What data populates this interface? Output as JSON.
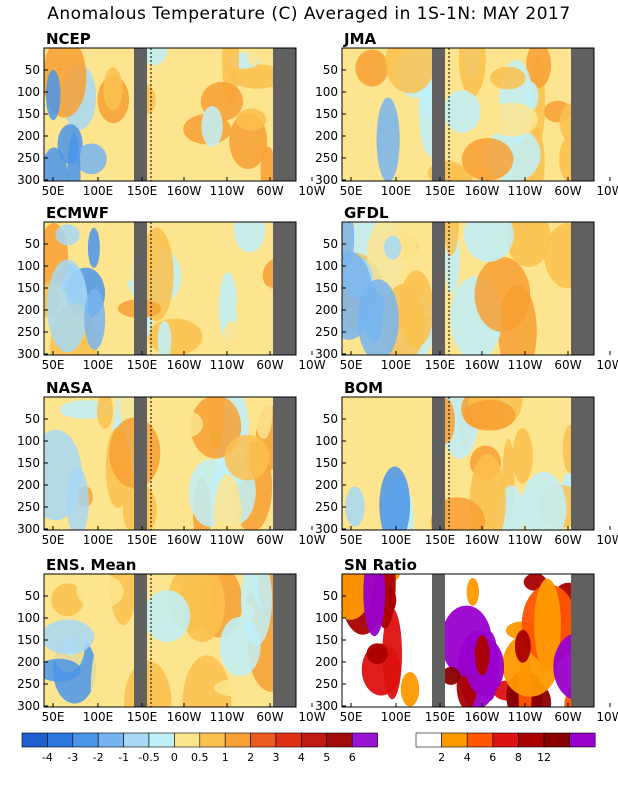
{
  "title": "Anomalous Temperature (C) Averaged in 1S-1N: MAY 2017",
  "chart_data": {
    "type": "heatmap",
    "x_ticks": [
      "50E",
      "100E",
      "150E",
      "160W",
      "110W",
      "60W",
      "10W"
    ],
    "y_ticks": [
      "50",
      "100",
      "150",
      "200",
      "250",
      "300"
    ],
    "ylim": [
      300,
      0
    ],
    "date_line": "180",
    "missing_band_color": "#606060",
    "panels": [
      {
        "name": "NCEP"
      },
      {
        "name": "JMA"
      },
      {
        "name": "ECMWF"
      },
      {
        "name": "GFDL"
      },
      {
        "name": "NASA"
      },
      {
        "name": "BOM"
      },
      {
        "name": "ENS. Mean"
      },
      {
        "name": "SN Ratio"
      }
    ],
    "anomaly_colorbar": {
      "labels": [
        "-4",
        "-3",
        "-2",
        "-1",
        "-0.5",
        "0",
        "0.5",
        "1",
        "2",
        "3",
        "4",
        "5",
        "6"
      ],
      "colors": [
        "#1e5fcd",
        "#2c78e0",
        "#4a95ea",
        "#78b4f0",
        "#a7d8f5",
        "#bff0fa",
        "#fde58f",
        "#fcc14e",
        "#f7a033",
        "#ec5b21",
        "#dd3014",
        "#c01912",
        "#a00c0c",
        "#9b13d4"
      ]
    },
    "sn_colorbar": {
      "labels": [
        "2",
        "4",
        "6",
        "8",
        "12"
      ],
      "colors": [
        "#ffffff",
        "#ff9900",
        "#ff5500",
        "#dd1111",
        "#aa0000",
        "#880000",
        "#9900cc"
      ]
    }
  }
}
